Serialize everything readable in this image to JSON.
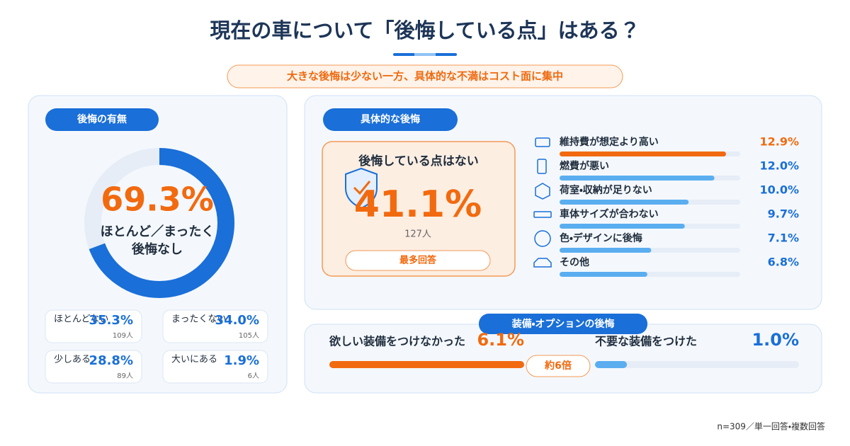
{
  "title": "現在の車について「後悔している点」はある？",
  "subtitle": "大きな後悔は少ない一方、具体的な不満はコスト面に集中",
  "regret_presence": {
    "heading": "後悔の有無",
    "donut": {
      "value": 69.3,
      "label": "69.3%",
      "caption": [
        "ほとんど／まったく",
        "後悔なし"
      ]
    },
    "items": [
      {
        "name": "ほとんどない",
        "pct": {
          "value": 35.3,
          "label": "35.3%"
        },
        "count": "109人"
      },
      {
        "name": "まったくない",
        "pct": {
          "value": 34.0,
          "label": "34.0%"
        },
        "count": "105人"
      },
      {
        "name": "少しある",
        "pct": {
          "value": 28.8,
          "label": "28.8%"
        },
        "count": "89人"
      },
      {
        "name": "大いにある",
        "pct": {
          "value": 1.9,
          "label": "1.9%"
        },
        "count": "6人"
      }
    ]
  },
  "specific": {
    "heading": "具体的な後悔",
    "highlight": {
      "title": "後悔している点はない",
      "pct": {
        "value": 41.1,
        "label": "41.1%"
      },
      "count": "127人",
      "badge": "最多回答"
    },
    "items": [
      {
        "name": "維持費が想定より高い",
        "pct": {
          "value": 12.9,
          "label": "12.9%"
        }
      },
      {
        "name": "燃費が悪い",
        "pct": {
          "value": 12.0,
          "label": "12.0%"
        }
      },
      {
        "name": "荷室・収納が足りない",
        "pct": {
          "value": 10.0,
          "label": "10.0%"
        }
      },
      {
        "name": "車体サイズが合わない",
        "pct": {
          "value": 9.7,
          "label": "9.7%"
        }
      },
      {
        "name": "色・デザインに後悔",
        "pct": {
          "value": 7.1,
          "label": "7.1%"
        }
      },
      {
        "name": "その他",
        "pct": {
          "value": 6.8,
          "label": "6.8%"
        }
      }
    ]
  },
  "equipment": {
    "heading": "装備・オプションの後悔",
    "items": [
      {
        "name": "欲しい装備をつけなかった",
        "pct": {
          "value": 6.1,
          "label": "6.1%"
        }
      },
      {
        "name": "不要な装備をつけた",
        "pct": {
          "value": 1.0,
          "label": "1.0%"
        }
      }
    ],
    "ratio": "約6倍"
  },
  "footnote": "n=309／単一回答・複数回答"
}
